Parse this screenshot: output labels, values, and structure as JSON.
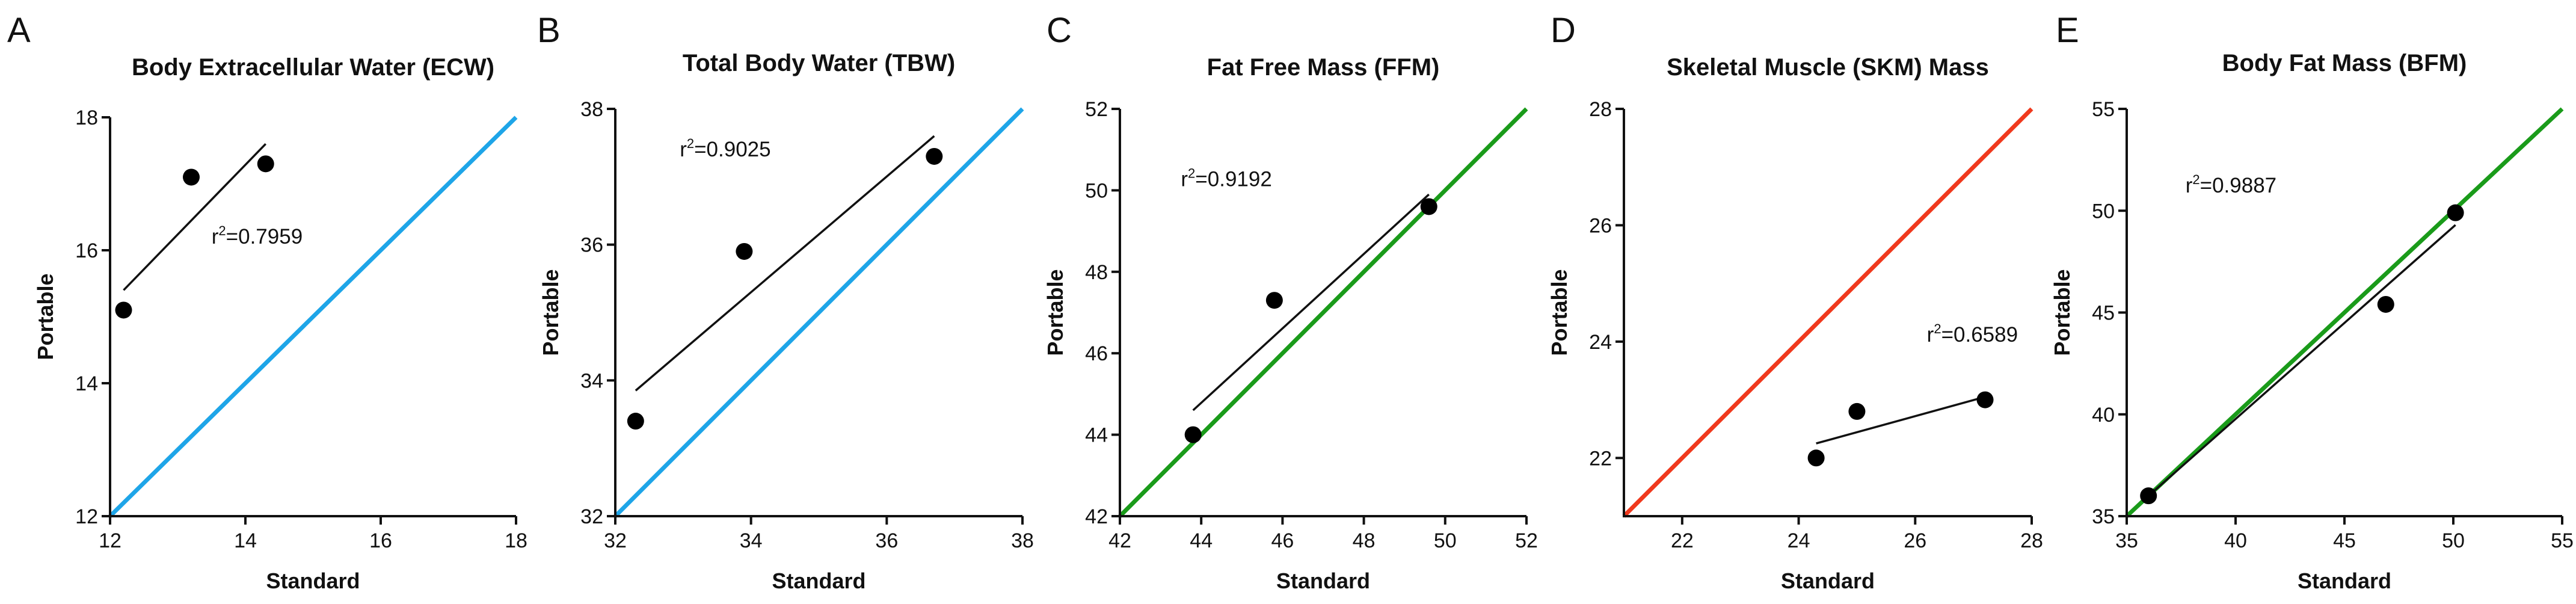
{
  "chart_data": [
    {
      "type": "scatter",
      "panel": "A",
      "title": "Body Extracellular Water (ECW)",
      "xlabel": "Standard",
      "ylabel": "Portable",
      "xlim": [
        12,
        18
      ],
      "ylim": [
        12,
        18
      ],
      "xticks": [
        12,
        14,
        16,
        18
      ],
      "yticks": [
        12,
        14,
        16,
        18
      ],
      "identity_color": "#1ea5e8",
      "points": [
        {
          "x": 12.2,
          "y": 15.1
        },
        {
          "x": 13.2,
          "y": 17.1
        },
        {
          "x": 14.3,
          "y": 17.3
        }
      ],
      "regression": {
        "x1": 12.2,
        "y1": 15.4,
        "x2": 14.3,
        "y2": 17.6
      },
      "r2": "0.7959",
      "r2_pos": {
        "x": 13.5,
        "y": 16.1
      }
    },
    {
      "type": "scatter",
      "panel": "B",
      "title": "Total Body Water (TBW)",
      "xlabel": "Standard",
      "ylabel": "Portable",
      "xlim": [
        32,
        38
      ],
      "ylim": [
        32,
        38
      ],
      "xticks": [
        32,
        34,
        36,
        38
      ],
      "yticks": [
        32,
        34,
        36,
        38
      ],
      "identity_color": "#1ea5e8",
      "points": [
        {
          "x": 32.3,
          "y": 33.4
        },
        {
          "x": 33.9,
          "y": 35.9
        },
        {
          "x": 36.7,
          "y": 37.3
        }
      ],
      "regression": {
        "x1": 32.3,
        "y1": 33.85,
        "x2": 36.7,
        "y2": 37.6
      },
      "r2": "0.9025",
      "r2_pos": {
        "x": 32.95,
        "y": 37.3
      }
    },
    {
      "type": "scatter",
      "panel": "C",
      "title": "Fat Free Mass (FFM)",
      "xlabel": "Standard",
      "ylabel": "Portable",
      "xlim": [
        42,
        52
      ],
      "ylim": [
        42,
        52
      ],
      "xticks": [
        42,
        44,
        46,
        48,
        50,
        52
      ],
      "yticks": [
        42,
        44,
        46,
        48,
        50,
        52
      ],
      "identity_color": "#1a9b1a",
      "points": [
        {
          "x": 43.8,
          "y": 44.0
        },
        {
          "x": 45.8,
          "y": 47.3
        },
        {
          "x": 49.6,
          "y": 49.6
        }
      ],
      "regression": {
        "x1": 43.8,
        "y1": 44.6,
        "x2": 49.6,
        "y2": 49.9
      },
      "r2": "0.9192",
      "r2_pos": {
        "x": 43.5,
        "y": 50.1
      }
    },
    {
      "type": "scatter",
      "panel": "D",
      "title": "Skeletal Muscle (SKM) Mass",
      "xlabel": "Standard",
      "ylabel": "Portable",
      "xlim": [
        21,
        28
      ],
      "ylim": [
        21,
        28
      ],
      "xticks": [
        22,
        24,
        26,
        28
      ],
      "yticks": [
        22,
        24,
        26,
        28
      ],
      "identity_color": "#f0391d",
      "points": [
        {
          "x": 24.3,
          "y": 22.0
        },
        {
          "x": 25.0,
          "y": 22.8
        },
        {
          "x": 27.2,
          "y": 23.0
        }
      ],
      "regression": {
        "x1": 24.3,
        "y1": 22.25,
        "x2": 27.2,
        "y2": 23.05
      },
      "r2": "0.6589",
      "r2_pos": {
        "x": 26.2,
        "y": 24.0
      }
    },
    {
      "type": "scatter",
      "panel": "E",
      "title": "Body Fat Mass (BFM)",
      "xlabel": "Standard",
      "ylabel": "Portable",
      "xlim": [
        35,
        55
      ],
      "ylim": [
        35,
        55
      ],
      "xticks": [
        35,
        40,
        45,
        50,
        55
      ],
      "yticks": [
        35,
        40,
        45,
        50,
        55
      ],
      "identity_color": "#1a9b1a",
      "points": [
        {
          "x": 36.0,
          "y": 36.0
        },
        {
          "x": 46.9,
          "y": 45.4
        },
        {
          "x": 50.1,
          "y": 49.9
        }
      ],
      "regression": {
        "x1": 36.0,
        "y1": 36.0,
        "x2": 50.1,
        "y2": 49.3
      },
      "r2": "0.9887",
      "r2_pos": {
        "x": 37.7,
        "y": 50.9
      }
    }
  ]
}
